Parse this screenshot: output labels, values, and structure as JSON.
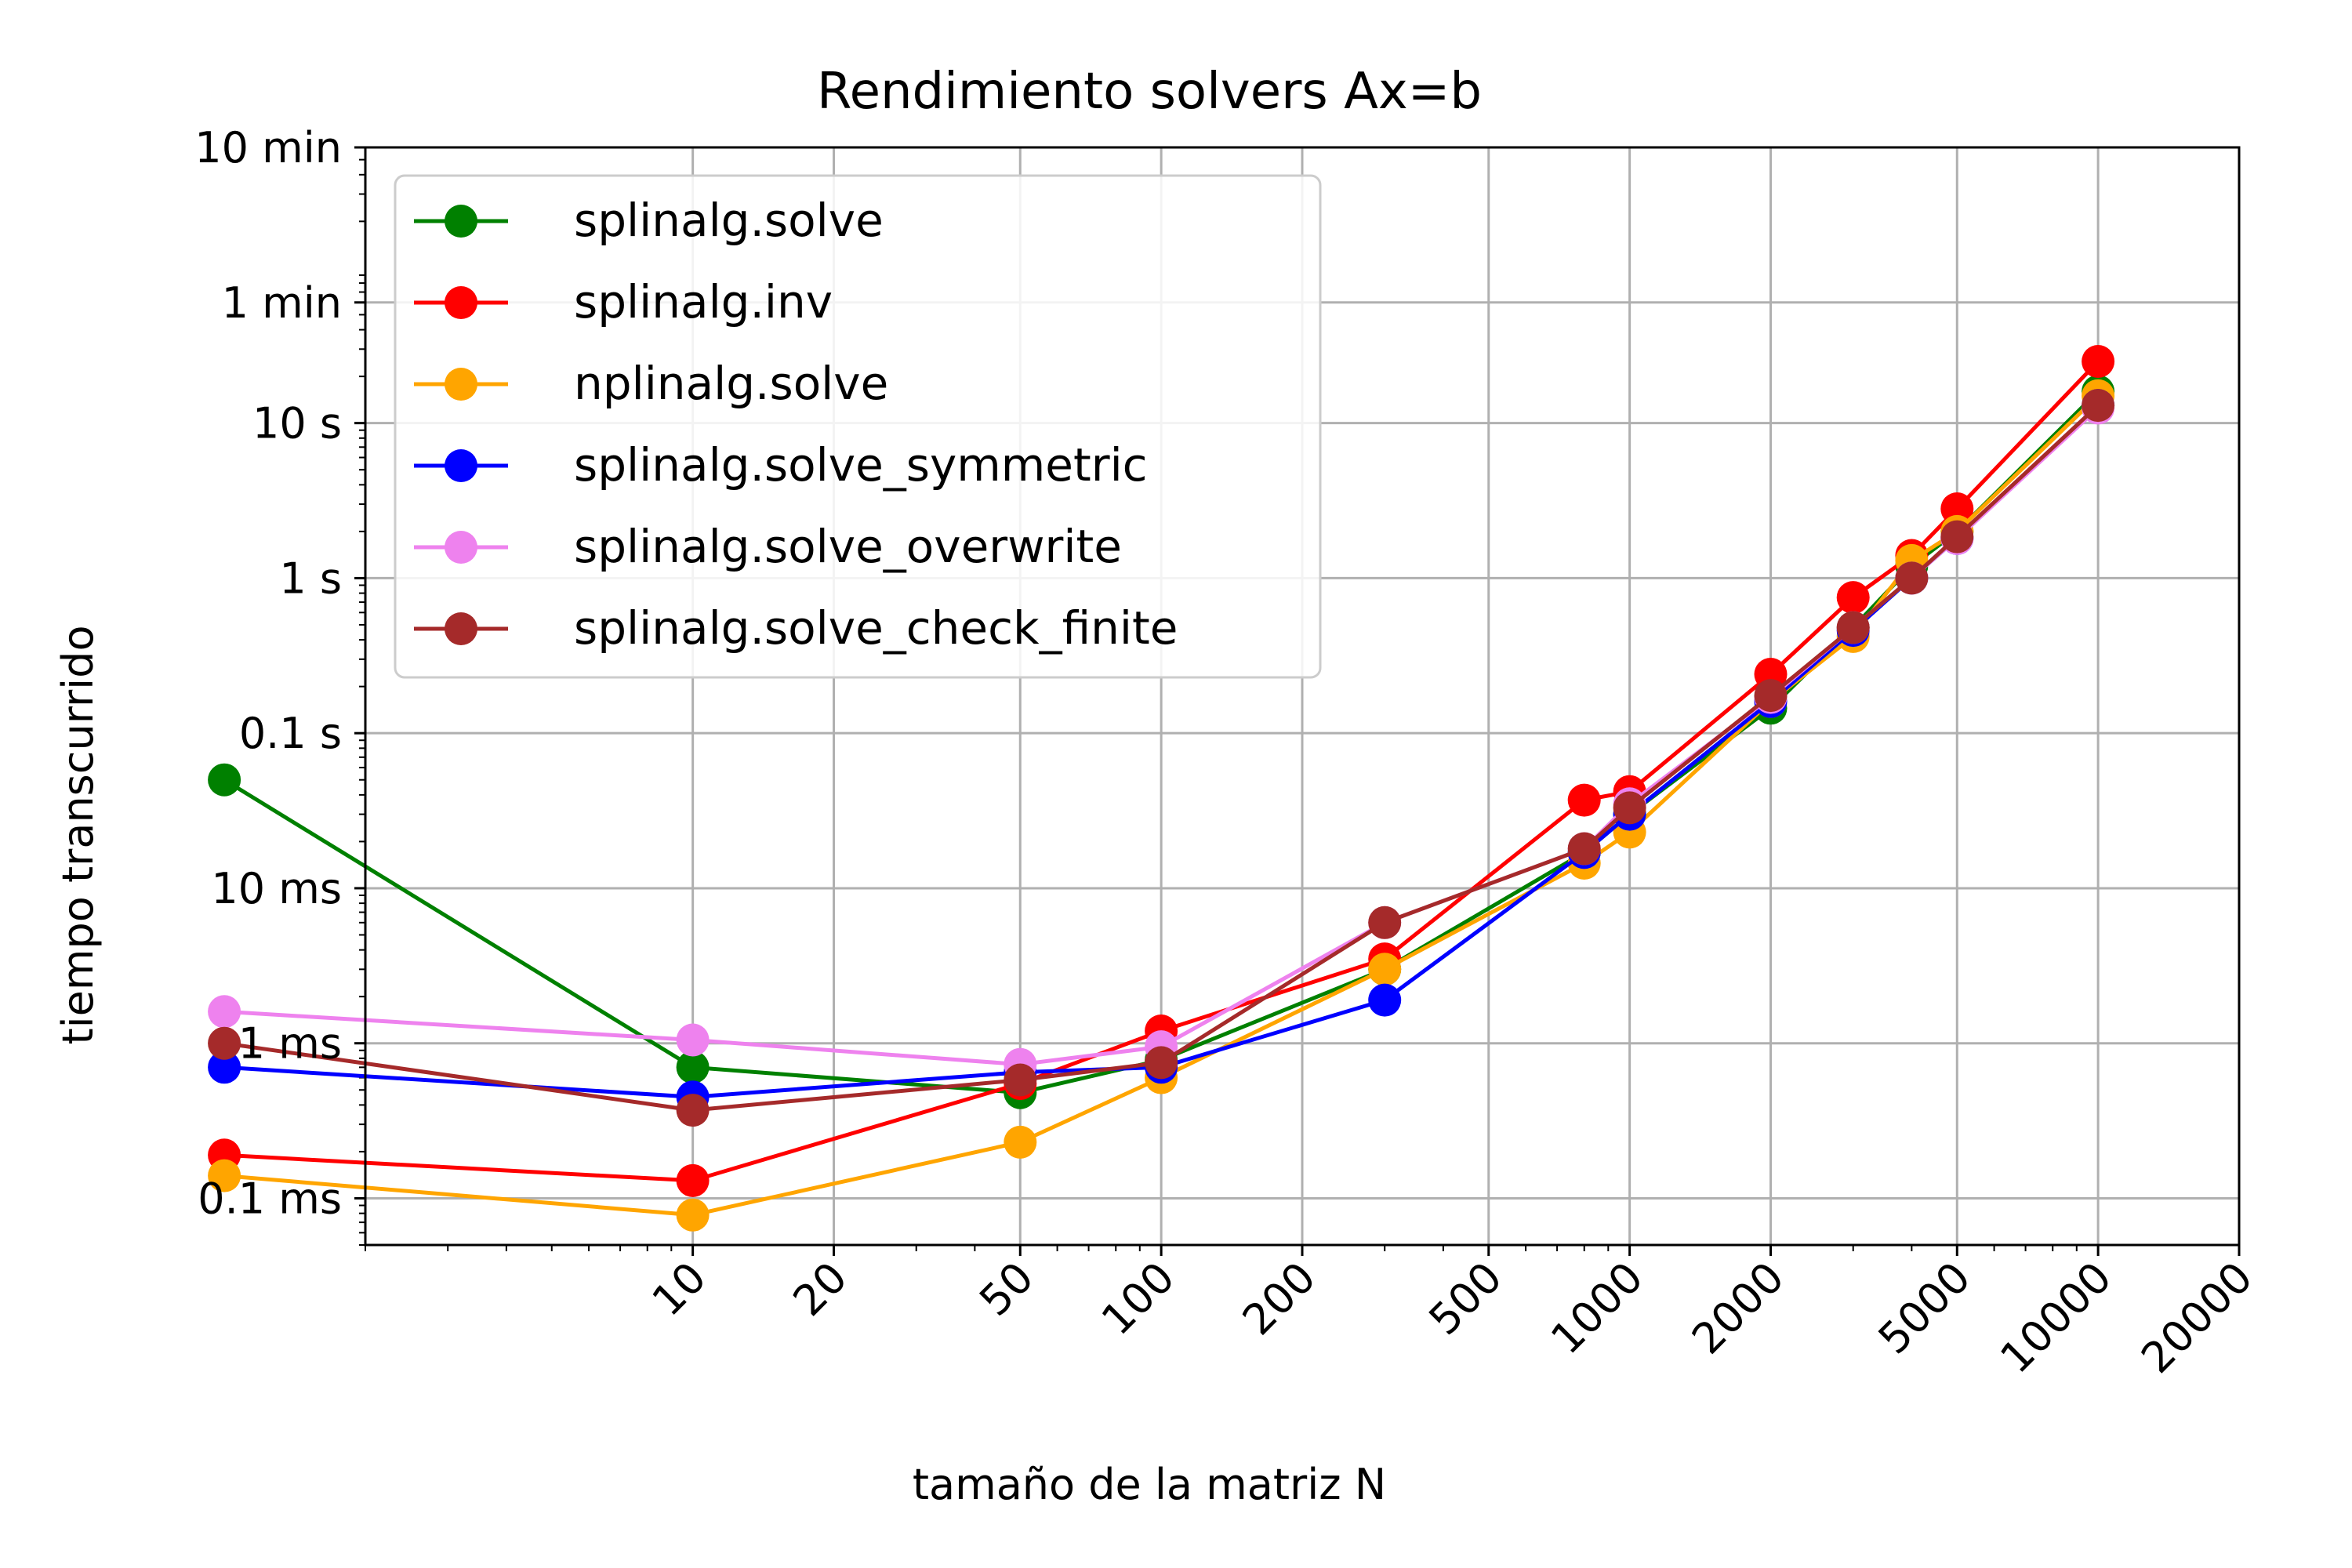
{
  "chart_data": {
    "type": "line",
    "title": "Rendimiento solvers Ax=b",
    "xlabel": "tamaño de la matriz N",
    "ylabel": "tiempo transcurrido",
    "x_scale": "log",
    "y_scale": "log",
    "xlim": [
      2,
      20000
    ],
    "ylim": [
      5e-05,
      600
    ],
    "grid": true,
    "legend_position": "upper-left",
    "x_ticks": [
      {
        "value": 10,
        "label": "10"
      },
      {
        "value": 20,
        "label": "20"
      },
      {
        "value": 50,
        "label": "50"
      },
      {
        "value": 100,
        "label": "100"
      },
      {
        "value": 200,
        "label": "200"
      },
      {
        "value": 500,
        "label": "500"
      },
      {
        "value": 1000,
        "label": "1000"
      },
      {
        "value": 2000,
        "label": "2000"
      },
      {
        "value": 5000,
        "label": "5000"
      },
      {
        "value": 10000,
        "label": "10000"
      },
      {
        "value": 20000,
        "label": "20000"
      }
    ],
    "y_ticks": [
      {
        "value": 0.0001,
        "label": "0.1 ms"
      },
      {
        "value": 0.001,
        "label": "1 ms"
      },
      {
        "value": 0.01,
        "label": "10 ms"
      },
      {
        "value": 0.1,
        "label": "0.1 s"
      },
      {
        "value": 1,
        "label": "1 s"
      },
      {
        "value": 10,
        "label": "10 s"
      },
      {
        "value": 60,
        "label": "1 min"
      },
      {
        "value": 600,
        "label": "10 min"
      }
    ],
    "series": [
      {
        "name": "splinalg.solve",
        "color": "#008000",
        "points": [
          [
            1,
            0.05
          ],
          [
            10,
            0.0007
          ],
          [
            50,
            0.00048
          ],
          [
            100,
            0.00078
          ],
          [
            300,
            0.003
          ],
          [
            800,
            0.017
          ],
          [
            1000,
            0.03
          ],
          [
            2000,
            0.145
          ],
          [
            3000,
            0.48
          ],
          [
            4000,
            1.2
          ],
          [
            5000,
            2.0
          ],
          [
            10000,
            16
          ]
        ]
      },
      {
        "name": "splinalg.inv",
        "color": "#ff0000",
        "points": [
          [
            1,
            0.00019
          ],
          [
            10,
            0.00013
          ],
          [
            50,
            0.00055
          ],
          [
            100,
            0.0012
          ],
          [
            300,
            0.0035
          ],
          [
            800,
            0.037
          ],
          [
            1000,
            0.042
          ],
          [
            2000,
            0.24
          ],
          [
            3000,
            0.75
          ],
          [
            4000,
            1.4
          ],
          [
            5000,
            2.8
          ],
          [
            10000,
            25
          ]
        ]
      },
      {
        "name": "nplinalg.solve",
        "color": "#ffa500",
        "points": [
          [
            1,
            0.00014
          ],
          [
            10,
            7.8e-05
          ],
          [
            50,
            0.00023
          ],
          [
            100,
            0.0006
          ],
          [
            300,
            0.003
          ],
          [
            800,
            0.0145
          ],
          [
            1000,
            0.023
          ],
          [
            2000,
            0.16
          ],
          [
            3000,
            0.42
          ],
          [
            4000,
            1.3
          ],
          [
            5000,
            2.0
          ],
          [
            10000,
            15
          ]
        ]
      },
      {
        "name": "splinalg.solve_symmetric",
        "color": "#0000ff",
        "points": [
          [
            1,
            0.0007
          ],
          [
            10,
            0.00045
          ],
          [
            50,
            0.00065
          ],
          [
            100,
            0.0007
          ],
          [
            300,
            0.0019
          ],
          [
            800,
            0.017
          ],
          [
            1000,
            0.03
          ],
          [
            2000,
            0.16
          ],
          [
            3000,
            0.46
          ],
          [
            4000,
            1.0
          ],
          [
            5000,
            1.8
          ],
          [
            10000,
            13
          ]
        ]
      },
      {
        "name": "splinalg.solve_overwrite",
        "color": "#ee82ee",
        "points": [
          [
            1,
            0.0016
          ],
          [
            10,
            0.00105
          ],
          [
            50,
            0.00073
          ],
          [
            100,
            0.00095
          ],
          [
            300,
            0.006
          ],
          [
            800,
            0.018
          ],
          [
            1000,
            0.035
          ],
          [
            2000,
            0.17
          ],
          [
            3000,
            0.48
          ],
          [
            4000,
            1.0
          ],
          [
            5000,
            1.8
          ],
          [
            10000,
            12.5
          ]
        ]
      },
      {
        "name": "splinalg.solve_check_finite",
        "color": "#a52a2a",
        "points": [
          [
            1,
            0.001
          ],
          [
            10,
            0.00037
          ],
          [
            50,
            0.00058
          ],
          [
            100,
            0.00075
          ],
          [
            300,
            0.006
          ],
          [
            800,
            0.018
          ],
          [
            1000,
            0.033
          ],
          [
            2000,
            0.175
          ],
          [
            3000,
            0.48
          ],
          [
            4000,
            1.0
          ],
          [
            5000,
            1.85
          ],
          [
            10000,
            13
          ]
        ]
      }
    ]
  }
}
